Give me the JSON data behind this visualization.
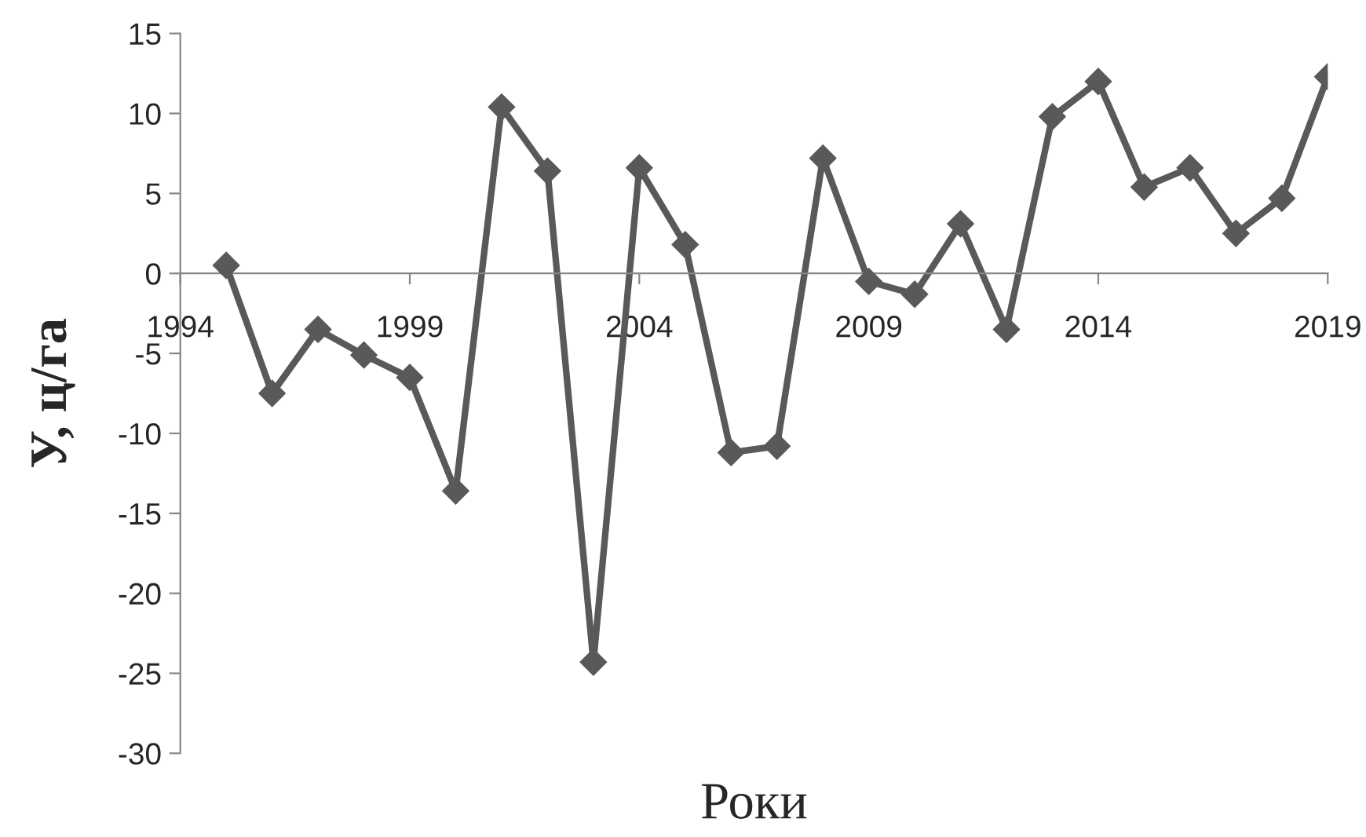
{
  "chart_data": {
    "type": "line",
    "xlabel": "Роки",
    "ylabel": "У, ц/га",
    "x": [
      1995,
      1996,
      1997,
      1998,
      1999,
      2000,
      2001,
      2002,
      2003,
      2004,
      2005,
      2006,
      2007,
      2008,
      2009,
      2010,
      2011,
      2012,
      2013,
      2014,
      2015,
      2016,
      2017,
      2018,
      2019
    ],
    "series": [
      {
        "color": "#595959",
        "values": [
          0.5,
          -7.5,
          -3.5,
          -5.1,
          -6.5,
          -13.6,
          10.4,
          6.4,
          -24.3,
          6.6,
          1.8,
          -11.2,
          -10.8,
          7.2,
          -0.5,
          -1.3,
          3.1,
          -3.5,
          9.8,
          12.0,
          5.4,
          6.6,
          2.5,
          4.7,
          12.3
        ]
      }
    ],
    "xlim": [
      1994,
      2019
    ],
    "xticks": [
      1994,
      1999,
      2004,
      2009,
      2014,
      2019
    ],
    "ylim": [
      -30,
      15
    ],
    "yticks": [
      -30,
      -25,
      -20,
      -15,
      -10,
      -5,
      0,
      5,
      10,
      15
    ],
    "marker": "diamond",
    "line_style": "solid",
    "grid": false,
    "legend": false
  }
}
